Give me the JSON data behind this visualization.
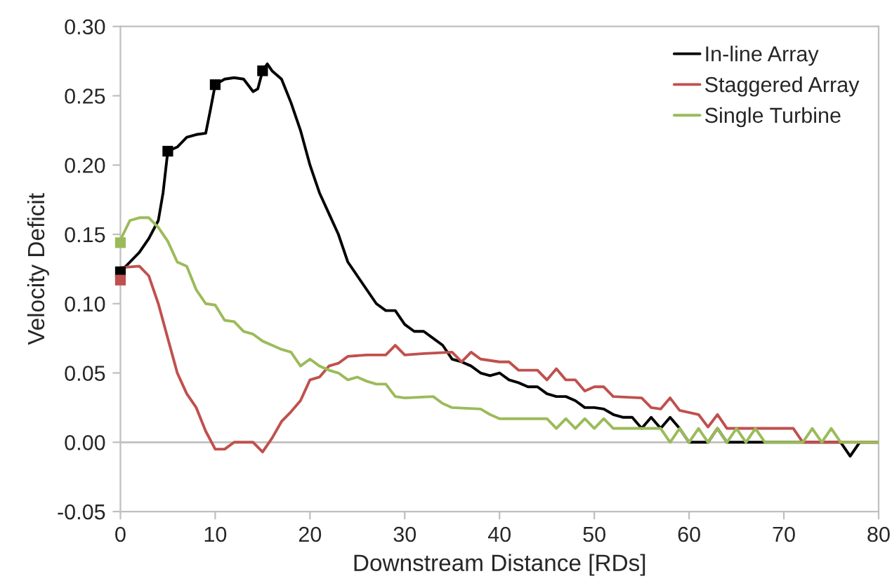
{
  "chart_data": {
    "type": "line",
    "xlabel": "Downstream Distance [RDs]",
    "ylabel": "Velocity Deficit",
    "xlim": [
      0,
      80
    ],
    "xticks": [
      0,
      10,
      20,
      30,
      40,
      50,
      60,
      70,
      80
    ],
    "ylim": [
      -0.05,
      0.3
    ],
    "yticks": [
      {
        "value": -0.05,
        "label": "-0.05"
      },
      {
        "value": 0,
        "label": "0.00"
      },
      {
        "value": 0.05,
        "label": "0.05"
      },
      {
        "value": 0.1,
        "label": "0.10"
      },
      {
        "value": 0.15,
        "label": "0.15"
      },
      {
        "value": 0.2,
        "label": "0.20"
      },
      {
        "value": 0.25,
        "label": "0.25"
      },
      {
        "value": 0.3,
        "label": "0.30"
      }
    ],
    "grid": false,
    "legend": "top right",
    "marker": "none",
    "line_style": "solid",
    "ref_lines": [
      {
        "axis": "y",
        "value": 0,
        "color": "#bfbfbf"
      }
    ],
    "series": [
      {
        "name": "In-line Array",
        "color": "#000000",
        "x": [
          0,
          1,
          2,
          3,
          4,
          4.5,
          5,
          6,
          7,
          8,
          9,
          9.5,
          10,
          11,
          12,
          13,
          14,
          14.5,
          15,
          15.5,
          16,
          17,
          18,
          19,
          20,
          21,
          22,
          23,
          24,
          25,
          26,
          27,
          28,
          29,
          30,
          31,
          32,
          33,
          34,
          35,
          36,
          37,
          38,
          39,
          40,
          41,
          42,
          43,
          44,
          45,
          46,
          47,
          48,
          49,
          50,
          51,
          52,
          53,
          54,
          55,
          56,
          57,
          58,
          59,
          60,
          61,
          62,
          63,
          64,
          70,
          76,
          77,
          78,
          80
        ],
        "values": [
          0.123,
          0.13,
          0.137,
          0.147,
          0.16,
          0.18,
          0.21,
          0.213,
          0.22,
          0.222,
          0.223,
          0.24,
          0.258,
          0.262,
          0.263,
          0.262,
          0.253,
          0.255,
          0.268,
          0.273,
          0.268,
          0.262,
          0.245,
          0.225,
          0.2,
          0.18,
          0.165,
          0.15,
          0.13,
          0.12,
          0.11,
          0.1,
          0.095,
          0.095,
          0.085,
          0.08,
          0.08,
          0.075,
          0.07,
          0.06,
          0.058,
          0.055,
          0.05,
          0.048,
          0.05,
          0.045,
          0.043,
          0.04,
          0.04,
          0.035,
          0.033,
          0.033,
          0.03,
          0.025,
          0.025,
          0.024,
          0.02,
          0.018,
          0.018,
          0.01,
          0.018,
          0.01,
          0.018,
          0.01,
          0.0,
          0.0,
          0.0,
          0.01,
          0.0,
          0.0,
          0.0,
          -0.01,
          0.0,
          0.0
        ]
      },
      {
        "name": "Staggered Array",
        "color": "#c0504d",
        "x": [
          0,
          2,
          3,
          4,
          5,
          6,
          7,
          8,
          9,
          10,
          11,
          12,
          13,
          14,
          15,
          16,
          17,
          18,
          19,
          20,
          21,
          22,
          23,
          24,
          26,
          28,
          29,
          30,
          32,
          35,
          36,
          37,
          38,
          40,
          41,
          42,
          44,
          45,
          46,
          47,
          48,
          49,
          50,
          51,
          52,
          55,
          56,
          57,
          58,
          59,
          61,
          62,
          63,
          64,
          71,
          72,
          80
        ],
        "values": [
          0.126,
          0.127,
          0.12,
          0.1,
          0.075,
          0.05,
          0.035,
          0.025,
          0.008,
          -0.005,
          -0.005,
          0.0,
          0.0,
          0.0,
          -0.007,
          0.003,
          0.015,
          0.022,
          0.03,
          0.045,
          0.047,
          0.055,
          0.057,
          0.062,
          0.063,
          0.063,
          0.07,
          0.063,
          0.064,
          0.065,
          0.058,
          0.065,
          0.06,
          0.058,
          0.058,
          0.052,
          0.052,
          0.045,
          0.053,
          0.045,
          0.045,
          0.037,
          0.04,
          0.04,
          0.033,
          0.032,
          0.025,
          0.024,
          0.032,
          0.023,
          0.02,
          0.011,
          0.02,
          0.01,
          0.01,
          0.0,
          0.0
        ]
      },
      {
        "name": "Single Turbine",
        "color": "#9bbb59",
        "x": [
          0,
          1,
          2,
          3,
          4,
          5,
          6,
          7,
          8,
          9,
          10,
          11,
          12,
          13,
          14,
          15,
          16,
          17,
          18,
          19,
          20,
          21,
          22,
          23,
          24,
          25,
          26,
          27,
          28,
          29,
          30,
          33,
          34,
          35,
          38,
          39,
          40,
          45,
          46,
          47,
          48,
          49,
          50,
          51,
          52,
          56,
          57,
          58,
          59,
          60,
          61,
          62,
          63,
          64,
          65,
          66,
          67,
          68,
          69,
          72,
          73,
          74,
          75,
          76,
          80
        ],
        "values": [
          0.146,
          0.16,
          0.162,
          0.162,
          0.155,
          0.145,
          0.13,
          0.127,
          0.11,
          0.1,
          0.099,
          0.088,
          0.087,
          0.08,
          0.078,
          0.073,
          0.07,
          0.067,
          0.065,
          0.055,
          0.06,
          0.055,
          0.052,
          0.05,
          0.045,
          0.047,
          0.044,
          0.042,
          0.042,
          0.033,
          0.032,
          0.033,
          0.028,
          0.025,
          0.024,
          0.02,
          0.017,
          0.017,
          0.01,
          0.017,
          0.01,
          0.017,
          0.01,
          0.017,
          0.01,
          0.01,
          0.01,
          0.0,
          0.01,
          0.0,
          0.01,
          0.0,
          0.01,
          0.0,
          0.01,
          0.0,
          0.01,
          0.0,
          0.0,
          0.0,
          0.01,
          0.0,
          0.01,
          0.0,
          0.0
        ]
      },
      {
        "type": "scatter",
        "marker": "square",
        "color": "#000000",
        "x": [
          0,
          5,
          10,
          15
        ],
        "values": [
          0.123,
          0.21,
          0.258,
          0.268
        ]
      },
      {
        "type": "scatter",
        "marker": "square",
        "color": "#c0504d",
        "x": [
          0
        ],
        "values": [
          0.117
        ]
      },
      {
        "type": "scatter",
        "marker": "square",
        "color": "#9bbb59",
        "x": [
          0
        ],
        "values": [
          0.144
        ]
      }
    ]
  }
}
